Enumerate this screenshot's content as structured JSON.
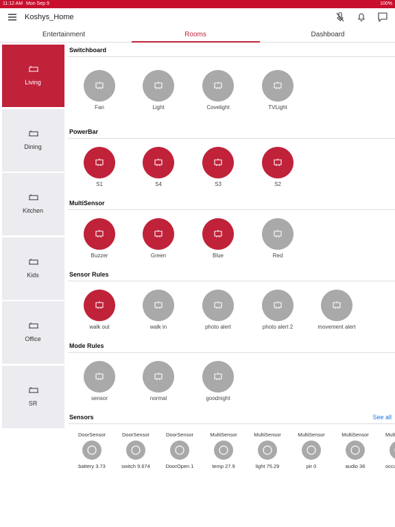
{
  "status_bar": {
    "time": "11:12 AM",
    "date": "Mon Sep 9",
    "battery": "100%"
  },
  "header": {
    "title": "Koshys_Home"
  },
  "tabs": {
    "items": [
      "Entertainment",
      "Rooms",
      "Dashboard"
    ],
    "active": 1
  },
  "rooms": {
    "items": [
      "Living",
      "Dining",
      "Kitchen",
      "Kids",
      "Office",
      "SR"
    ],
    "active": 0
  },
  "sections": [
    {
      "title": "Switchboard",
      "items": [
        {
          "label": "Fan",
          "on": false
        },
        {
          "label": "Light",
          "on": false
        },
        {
          "label": "Covelight",
          "on": false
        },
        {
          "label": "TVLight",
          "on": false
        }
      ]
    },
    {
      "title": "PowerBar",
      "items": [
        {
          "label": "S1",
          "on": true
        },
        {
          "label": "S4",
          "on": true
        },
        {
          "label": "S3",
          "on": true
        },
        {
          "label": "S2",
          "on": true
        }
      ]
    },
    {
      "title": "MultiSensor",
      "items": [
        {
          "label": "Buzzer",
          "on": true
        },
        {
          "label": "Green",
          "on": true
        },
        {
          "label": "Blue",
          "on": true
        },
        {
          "label": "Red",
          "on": false
        }
      ]
    },
    {
      "title": "Sensor Rules",
      "items": [
        {
          "label": "walk out",
          "on": true
        },
        {
          "label": "walk in",
          "on": false
        },
        {
          "label": "photo alert",
          "on": false
        },
        {
          "label": "photo alert 2",
          "on": false
        },
        {
          "label": "movement alert",
          "on": false
        }
      ]
    },
    {
      "title": "Mode Rules",
      "items": [
        {
          "label": "sensor",
          "on": false
        },
        {
          "label": "normal",
          "on": false
        },
        {
          "label": "goodnight",
          "on": false
        }
      ]
    }
  ],
  "sensors": {
    "title": "Sensors",
    "see_all": "See all",
    "items": [
      {
        "type": "DoorSensor",
        "value": "battery 3.73"
      },
      {
        "type": "DoorSensor",
        "value": "switch 9.674"
      },
      {
        "type": "DoorSensor",
        "value": "DoorOpen 1"
      },
      {
        "type": "MultiSensor",
        "value": "temp 27.9"
      },
      {
        "type": "MultiSensor",
        "value": "light 75.29"
      },
      {
        "type": "MultiSensor",
        "value": "pir 0"
      },
      {
        "type": "MultiSensor",
        "value": "audio 36"
      },
      {
        "type": "Mult",
        "value": "occu"
      }
    ]
  }
}
